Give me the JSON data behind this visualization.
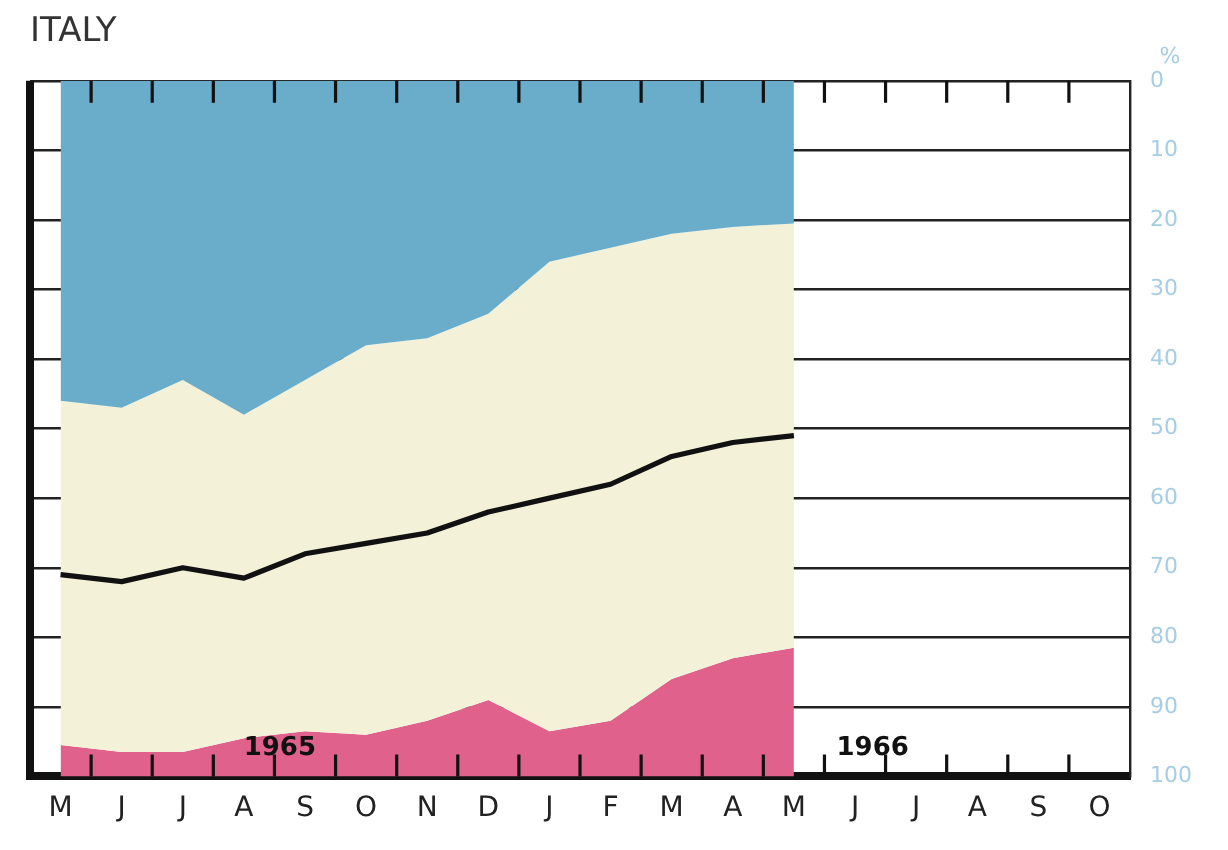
{
  "chart_data": {
    "type": "area",
    "title": "ITALY",
    "ylabel": "%",
    "categories": [
      "M",
      "J",
      "J",
      "A",
      "S",
      "O",
      "N",
      "D",
      "J",
      "F",
      "M",
      "A",
      "M",
      "J",
      "J",
      "A",
      "S",
      "O"
    ],
    "ylim": [
      100,
      0
    ],
    "yticks": [
      0,
      10,
      20,
      30,
      40,
      50,
      60,
      70,
      80,
      90,
      100
    ],
    "stacked": true,
    "grid": "y",
    "legend": false,
    "marker": "none",
    "series": [
      {
        "color": "#6aadca",
        "values": [
          46,
          47,
          43,
          48,
          43,
          38,
          37,
          33.5,
          26,
          24,
          22,
          21,
          20.5,
          null,
          null,
          null,
          null,
          null
        ]
      },
      {
        "color": "#f3f1d8",
        "values": [
          49.5,
          49.5,
          53.5,
          46.5,
          50.5,
          56,
          55,
          55.5,
          67.5,
          68,
          64,
          62,
          61,
          null,
          null,
          null,
          null,
          null
        ]
      },
      {
        "color": "#e0628c",
        "values": [
          4.5,
          3.5,
          3.5,
          5.5,
          6.5,
          6,
          8,
          11,
          6.5,
          8,
          14,
          17,
          18.5,
          null,
          null,
          null,
          null,
          null
        ]
      },
      {
        "type": "line",
        "color": "#111111",
        "values": [
          71,
          72,
          70,
          71.5,
          68,
          66.5,
          65,
          62,
          60,
          58,
          54,
          52,
          51,
          null,
          null,
          null,
          null,
          null
        ]
      }
    ],
    "annotations": [
      "1965",
      "1966"
    ]
  }
}
